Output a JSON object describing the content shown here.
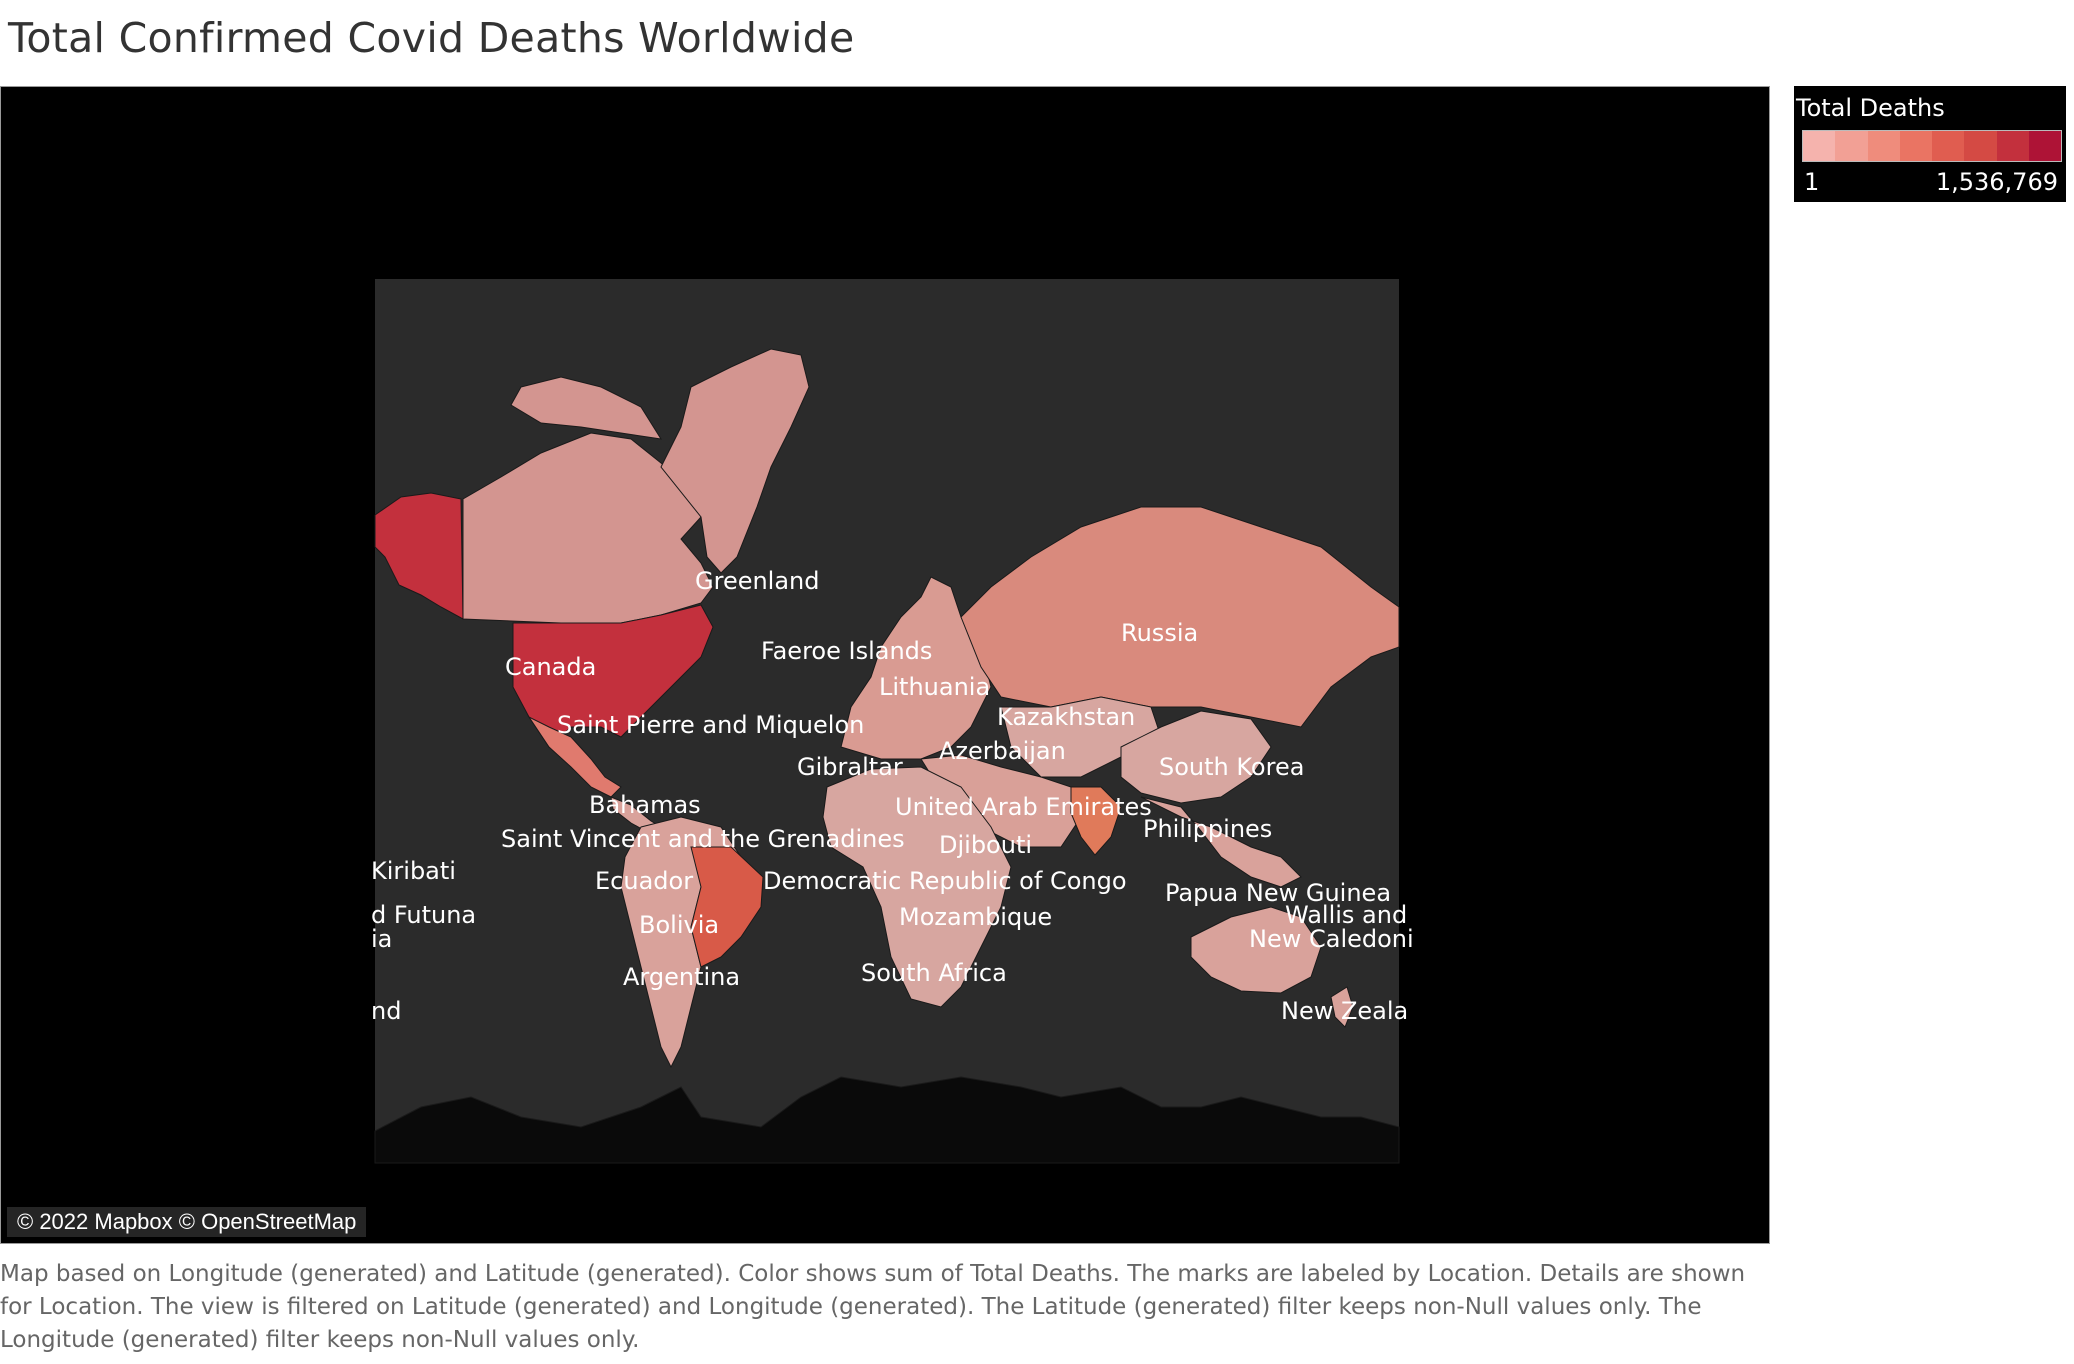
{
  "title": "Total Confirmed Covid Deaths Worldwide",
  "legend": {
    "title": "Total Deaths",
    "min_label": "1",
    "max_label": "1,536,769",
    "ramp_colors": [
      "#f5b3ad",
      "#f2a095",
      "#ef8c7c",
      "#ea7463",
      "#e05d50",
      "#d44a44",
      "#c3303d",
      "#ae1336"
    ]
  },
  "attribution": "© 2022 Mapbox © OpenStreetMap",
  "caption": "Map based on Longitude (generated) and Latitude (generated).  Color shows sum of Total Deaths.  The marks are labeled by Location.  Details are shown for Location. The view is filtered on Latitude (generated) and Longitude (generated). The Latitude (generated) filter keeps non-Null values only. The Longitude (generated) filter keeps non-Null values only.",
  "colors": {
    "map_background": "#000000",
    "ocean": "#2b2b2b",
    "land_dark": "#0a0a0a"
  },
  "labels": [
    {
      "id": "greenland",
      "text": "Greenland"
    },
    {
      "id": "russia",
      "text": "Russia"
    },
    {
      "id": "faeroe-islands",
      "text": "Faeroe Islands"
    },
    {
      "id": "canada",
      "text": "Canada"
    },
    {
      "id": "lithuania",
      "text": "Lithuania"
    },
    {
      "id": "kazakhstan",
      "text": "Kazakhstan"
    },
    {
      "id": "saint-pierre",
      "text": "Saint Pierre and Miquelon"
    },
    {
      "id": "azerbaijan",
      "text": "Azerbaijan"
    },
    {
      "id": "gibraltar",
      "text": "Gibraltar"
    },
    {
      "id": "south-korea",
      "text": "South Korea"
    },
    {
      "id": "bahamas",
      "text": "Bahamas"
    },
    {
      "id": "uae",
      "text": "United Arab Emirates"
    },
    {
      "id": "philippines",
      "text": "Philippines"
    },
    {
      "id": "saint-vincent",
      "text": "Saint Vincent and the Grenadines"
    },
    {
      "id": "djibouti",
      "text": "Djibouti"
    },
    {
      "id": "kiribati",
      "text": "Kiribati"
    },
    {
      "id": "ecuador",
      "text": "Ecuador"
    },
    {
      "id": "drc",
      "text": "Democratic Republic of Congo"
    },
    {
      "id": "papua-new-guinea",
      "text": "Papua New Guinea"
    },
    {
      "id": "futuna",
      "text": "d Futuna"
    },
    {
      "id": "wallis",
      "text": "Wallis and"
    },
    {
      "id": "mozambique",
      "text": "Mozambique"
    },
    {
      "id": "bolivia",
      "text": "Bolivia"
    },
    {
      "id": "ia",
      "text": "ia"
    },
    {
      "id": "new-caledonia",
      "text": "New Caledoni"
    },
    {
      "id": "south-africa",
      "text": "South Africa"
    },
    {
      "id": "argentina",
      "text": "Argentina"
    },
    {
      "id": "nd",
      "text": "nd"
    },
    {
      "id": "new-zealand",
      "text": "New Zeala"
    }
  ],
  "regions": [
    {
      "id": "alaska",
      "fill": "#c3303d"
    },
    {
      "id": "canada",
      "fill": "#d39590"
    },
    {
      "id": "greenland",
      "fill": "#d39590"
    },
    {
      "id": "usa",
      "fill": "#c3303d"
    },
    {
      "id": "mexico",
      "fill": "#e07a6e"
    },
    {
      "id": "central-america",
      "fill": "#d9a29b"
    },
    {
      "id": "south-america",
      "fill": "#d9a29b"
    },
    {
      "id": "brazil",
      "fill": "#d85a48"
    },
    {
      "id": "europe",
      "fill": "#d99b92"
    },
    {
      "id": "russia",
      "fill": "#d98a7d"
    },
    {
      "id": "africa",
      "fill": "#d7a6a0"
    },
    {
      "id": "middle-east",
      "fill": "#d9a098"
    },
    {
      "id": "central-asia",
      "fill": "#d7a6a0"
    },
    {
      "id": "india",
      "fill": "#e07a5a"
    },
    {
      "id": "china",
      "fill": "#d7a6a0"
    },
    {
      "id": "southeast-asia",
      "fill": "#d9a29b"
    },
    {
      "id": "australia",
      "fill": "#d9a29b"
    },
    {
      "id": "new-zealand",
      "fill": "#d9a29b"
    },
    {
      "id": "antarctica",
      "fill": "#0a0a0a"
    }
  ]
}
